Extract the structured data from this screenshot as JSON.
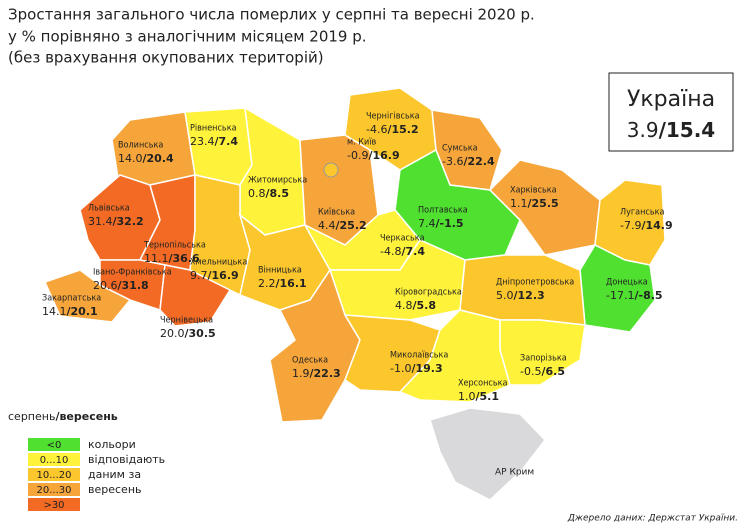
{
  "header": {
    "title_lines": [
      "Зростання загального числа померлих у серпні та вересні 2020 р.",
      "у % порівняно з аналогічним місяцем 2019 р.",
      "(без врахування окупованих територій)"
    ]
  },
  "separator": "/",
  "summary": {
    "name": "Україна",
    "august": "3.9",
    "september": "15.4"
  },
  "regions": [
    {
      "name": "Волинська",
      "august": "14.0",
      "september": "20.4",
      "color": "#f6a53a"
    },
    {
      "name": "Рівненська",
      "august": "23.4",
      "september": "7.4",
      "color": "#fff23a"
    },
    {
      "name": "Житомирська",
      "august": "0.8",
      "september": "8.5",
      "color": "#fff23a"
    },
    {
      "name": "Київська",
      "august": "4.4",
      "september": "25.2",
      "color": "#f6a53a"
    },
    {
      "name": "Чернігівська",
      "august": "-4.6",
      "september": "15.2",
      "color": "#fcc72c"
    },
    {
      "name": "Сумська",
      "august": "-3.6",
      "september": "22.4",
      "color": "#f6a53a"
    },
    {
      "name": "Полтавська",
      "august": "7.4",
      "september": "-1.5",
      "color": "#4fe030"
    },
    {
      "name": "Харківська",
      "august": "1.1",
      "september": "25.5",
      "color": "#f6a53a"
    },
    {
      "name": "Луганська",
      "august": "-7.9",
      "september": "14.9",
      "color": "#fcc72c"
    },
    {
      "name": "Донецька",
      "august": "-17.1",
      "september": "-8.5",
      "color": "#4fe030"
    },
    {
      "name": "Львівська",
      "august": "31.4",
      "september": "32.2",
      "color": "#f36a24"
    },
    {
      "name": "Тернопільська",
      "august": "11.1",
      "september": "36.6",
      "color": "#f36a24"
    },
    {
      "name": "Івано-Франківська",
      "august": "20.6",
      "september": "31.8",
      "color": "#f36a24"
    },
    {
      "name": "Закарпатська",
      "august": "14.1",
      "september": "20.1",
      "color": "#f6a53a"
    },
    {
      "name": "Чернівецька",
      "august": "20.0",
      "september": "30.5",
      "color": "#f36a24"
    },
    {
      "name": "Хмельницька",
      "august": "9.7",
      "september": "16.9",
      "color": "#fcc72c"
    },
    {
      "name": "Вінницька",
      "august": "2.2",
      "september": "16.1",
      "color": "#fcc72c"
    },
    {
      "name": "Черкаська",
      "august": "-4.8",
      "september": "7.4",
      "color": "#fff23a"
    },
    {
      "name": "Кіровоградська",
      "august": "4.8",
      "september": "5.8",
      "color": "#fff23a"
    },
    {
      "name": "Дніпропетровська",
      "august": "5.0",
      "september": "12.3",
      "color": "#fcc72c"
    },
    {
      "name": "Одеська",
      "august": "1.9",
      "september": "22.3",
      "color": "#f6a53a"
    },
    {
      "name": "Миколаївська",
      "august": "-1.0",
      "september": "19.3",
      "color": "#fcc72c"
    },
    {
      "name": "Запорізька",
      "august": "-0.5",
      "september": "6.5",
      "color": "#fff23a"
    },
    {
      "name": "Херсонська",
      "august": "1.0",
      "september": "5.1",
      "color": "#fff23a"
    },
    {
      "name": "м. Київ",
      "august": "-0.9",
      "september": "16.9",
      "color": "#fcc72c"
    }
  ],
  "crimea": "АР Крим",
  "legend": {
    "title_august": "серпень",
    "title_september": "вересень",
    "items": [
      {
        "label": "<0",
        "color": "#4fe030"
      },
      {
        "label": "0...10",
        "color": "#fff23a"
      },
      {
        "label": "10...20",
        "color": "#fcc72c"
      },
      {
        "label": "20...30",
        "color": "#f6a53a"
      },
      {
        "label": ">30",
        "color": "#f36a24"
      }
    ],
    "note_lines": [
      "кольори",
      "відповідають",
      "даним за",
      "вересень"
    ]
  },
  "source": "Джерело даних: Держстат України."
}
